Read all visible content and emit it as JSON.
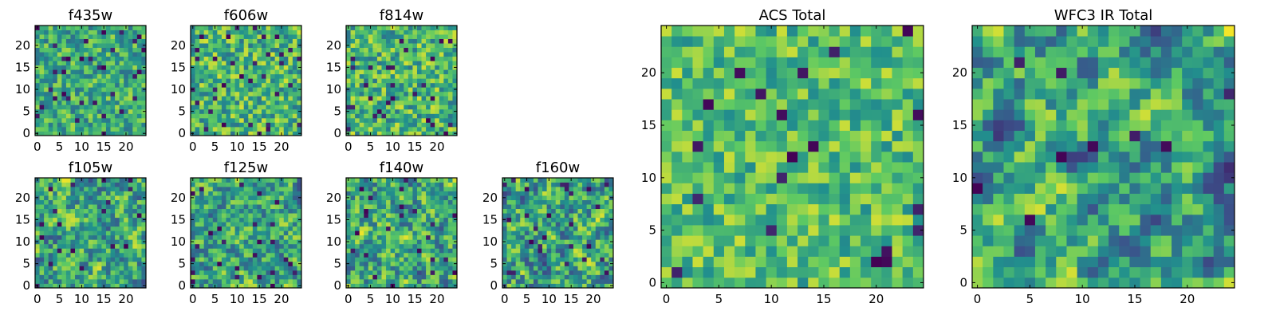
{
  "figure": {
    "description": "Grid of pixelated heatmap panels (viridis colormap), 25x25 pixels each",
    "colormap": [
      "#440154",
      "#3b528b",
      "#21908d",
      "#5dc963",
      "#fde725"
    ]
  },
  "chart_data": [
    {
      "type": "heatmap",
      "title": "f435w",
      "grid_size": [
        25,
        25
      ],
      "xlim": [
        -0.5,
        24.5
      ],
      "ylim": [
        -0.5,
        24.5
      ],
      "xticks": [
        0,
        5,
        10,
        15,
        20
      ],
      "yticks": [
        0,
        5,
        10,
        15,
        20
      ],
      "pattern": {
        "seed": 11,
        "smooth": 0,
        "mean": 0.62,
        "spread": 0.5,
        "dark_frac": 0.06
      }
    },
    {
      "type": "heatmap",
      "title": "f606w",
      "grid_size": [
        25,
        25
      ],
      "xlim": [
        -0.5,
        24.5
      ],
      "ylim": [
        -0.5,
        24.5
      ],
      "xticks": [
        0,
        5,
        10,
        15,
        20
      ],
      "yticks": [
        0,
        5,
        10,
        15,
        20
      ],
      "pattern": {
        "seed": 23,
        "smooth": 0,
        "mean": 0.66,
        "spread": 0.55,
        "dark_frac": 0.05
      }
    },
    {
      "type": "heatmap",
      "title": "f814w",
      "grid_size": [
        25,
        25
      ],
      "xlim": [
        -0.5,
        24.5
      ],
      "ylim": [
        -0.5,
        24.5
      ],
      "xticks": [
        0,
        5,
        10,
        15,
        20
      ],
      "yticks": [
        0,
        5,
        10,
        15,
        20
      ],
      "pattern": {
        "seed": 37,
        "smooth": 0,
        "mean": 0.66,
        "spread": 0.55,
        "dark_frac": 0.04
      }
    },
    {
      "type": "heatmap",
      "title": "f105w",
      "grid_size": [
        25,
        25
      ],
      "xlim": [
        -0.5,
        24.5
      ],
      "ylim": [
        -0.5,
        24.5
      ],
      "xticks": [
        0,
        5,
        10,
        15,
        20
      ],
      "yticks": [
        0,
        5,
        10,
        15,
        20
      ],
      "pattern": {
        "seed": 41,
        "smooth": 1,
        "mean": 0.6,
        "spread": 0.75,
        "dark_frac": 0.04
      }
    },
    {
      "type": "heatmap",
      "title": "f125w",
      "grid_size": [
        25,
        25
      ],
      "xlim": [
        -0.5,
        24.5
      ],
      "ylim": [
        -0.5,
        24.5
      ],
      "xticks": [
        0,
        5,
        10,
        15,
        20
      ],
      "yticks": [
        0,
        5,
        10,
        15,
        20
      ],
      "pattern": {
        "seed": 53,
        "smooth": 1,
        "mean": 0.58,
        "spread": 0.7,
        "dark_frac": 0.03
      }
    },
    {
      "type": "heatmap",
      "title": "f140w",
      "grid_size": [
        25,
        25
      ],
      "xlim": [
        -0.5,
        24.5
      ],
      "ylim": [
        -0.5,
        24.5
      ],
      "xticks": [
        0,
        5,
        10,
        15,
        20
      ],
      "yticks": [
        0,
        5,
        10,
        15,
        20
      ],
      "pattern": {
        "seed": 67,
        "smooth": 1,
        "mean": 0.6,
        "spread": 0.75,
        "dark_frac": 0.03
      }
    },
    {
      "type": "heatmap",
      "title": "f160w",
      "grid_size": [
        25,
        25
      ],
      "xlim": [
        -0.5,
        24.5
      ],
      "ylim": [
        -0.5,
        24.5
      ],
      "xticks": [
        0,
        5,
        10,
        15,
        20
      ],
      "yticks": [
        0,
        5,
        10,
        15,
        20
      ],
      "pattern": {
        "seed": 79,
        "smooth": 1,
        "mean": 0.58,
        "spread": 0.75,
        "dark_frac": 0.04
      }
    },
    {
      "type": "heatmap",
      "title": "ACS Total",
      "grid_size": [
        25,
        25
      ],
      "xlim": [
        -0.5,
        24.5
      ],
      "ylim": [
        -0.5,
        24.5
      ],
      "xticks": [
        0,
        5,
        10,
        15,
        20
      ],
      "yticks": [
        0,
        5,
        10,
        15,
        20
      ],
      "pattern": {
        "seed": 97,
        "smooth": 0,
        "mean": 0.7,
        "spread": 0.45,
        "dark_frac": 0.03
      }
    },
    {
      "type": "heatmap",
      "title": "WFC3 IR Total",
      "grid_size": [
        25,
        25
      ],
      "xlim": [
        -0.5,
        24.5
      ],
      "ylim": [
        -0.5,
        24.5
      ],
      "xticks": [
        0,
        5,
        10,
        15,
        20
      ],
      "yticks": [
        0,
        5,
        10,
        15,
        20
      ],
      "pattern": {
        "seed": 113,
        "smooth": 2,
        "mean": 0.56,
        "spread": 0.85,
        "dark_frac": 0.02
      }
    }
  ]
}
